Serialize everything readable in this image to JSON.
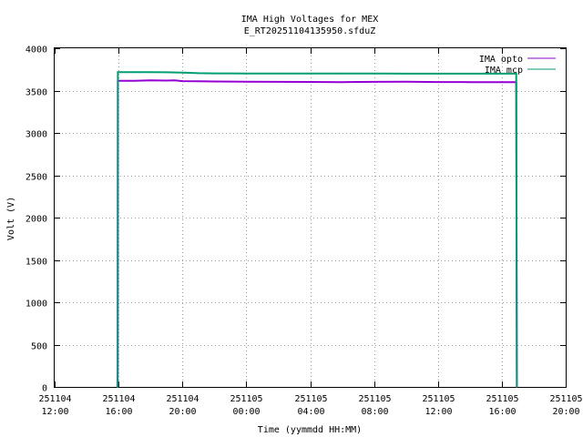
{
  "chart_data": {
    "type": "line",
    "title": "IMA High Voltages for MEX",
    "subtitle": "E_RT20251104135950.sfduZ",
    "xlabel": "Time (yymmdd HH:MM)",
    "ylabel": "Volt (V)",
    "x_tick_labels": [
      {
        "date": "251104",
        "time": "12:00"
      },
      {
        "date": "251104",
        "time": "16:00"
      },
      {
        "date": "251104",
        "time": "20:00"
      },
      {
        "date": "251105",
        "time": "00:00"
      },
      {
        "date": "251105",
        "time": "04:00"
      },
      {
        "date": "251105",
        "time": "08:00"
      },
      {
        "date": "251105",
        "time": "12:00"
      },
      {
        "date": "251105",
        "time": "16:00"
      },
      {
        "date": "251105",
        "time": "20:00"
      }
    ],
    "x_tick_hours": [
      0,
      4,
      8,
      12,
      16,
      20,
      24,
      28,
      32
    ],
    "xlim_hours": [
      0,
      32
    ],
    "x_start_label": "251104 12:00",
    "y_ticks": [
      0,
      500,
      1000,
      1500,
      2000,
      2500,
      3000,
      3500,
      4000
    ],
    "ylim": [
      0,
      4000
    ],
    "grid": true,
    "legend_position": "top-right",
    "series": [
      {
        "name": "IMA opto",
        "color": "#9400d3",
        "x_hours": [
          3.93,
          3.95,
          3.96,
          5.0,
          6.0,
          7.0,
          7.5,
          8.0,
          9.0,
          10.0,
          11.0,
          12.0,
          14.0,
          16.0,
          18.0,
          20.0,
          22.0,
          24.0,
          26.0,
          28.0,
          28.9,
          28.94
        ],
        "values": [
          0,
          190,
          3615,
          3615,
          3620,
          3618,
          3622,
          3612,
          3610,
          3608,
          3606,
          3604,
          3603,
          3602,
          3600,
          3603,
          3605,
          3601,
          3600,
          3600,
          3600,
          0
        ]
      },
      {
        "name": "IMA mcp",
        "color": "#009e73",
        "x_hours": [
          3.93,
          3.95,
          3.96,
          5.0,
          6.0,
          7.0,
          8.0,
          9.0,
          10.0,
          12.0,
          14.0,
          16.0,
          18.0,
          20.0,
          22.0,
          24.0,
          26.0,
          28.0,
          28.9,
          28.94
        ],
        "values": [
          0,
          0,
          3718,
          3718,
          3717,
          3716,
          3712,
          3705,
          3703,
          3702,
          3702,
          3701,
          3701,
          3701,
          3700,
          3700,
          3700,
          3700,
          3700,
          0
        ]
      }
    ]
  }
}
